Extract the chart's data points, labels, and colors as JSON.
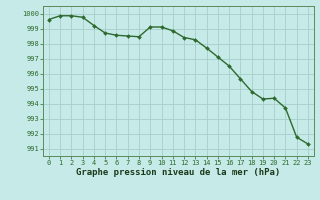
{
  "x": [
    0,
    1,
    2,
    3,
    4,
    5,
    6,
    7,
    8,
    9,
    10,
    11,
    12,
    13,
    14,
    15,
    16,
    17,
    18,
    19,
    20,
    21,
    22,
    23
  ],
  "y": [
    999.6,
    999.85,
    999.85,
    999.75,
    999.2,
    998.7,
    998.55,
    998.5,
    998.45,
    999.1,
    999.1,
    998.85,
    998.4,
    998.25,
    997.7,
    997.1,
    996.5,
    995.65,
    994.8,
    994.3,
    994.35,
    993.7,
    991.75,
    991.3
  ],
  "line_color": "#2d6a2d",
  "marker": "D",
  "marker_size": 2.0,
  "linewidth": 1.0,
  "background_color": "#c6eae8",
  "grid_color": "#a8ceca",
  "xlabel": "Graphe pression niveau de la mer (hPa)",
  "xlabel_fontsize": 6.5,
  "ylim": [
    990.5,
    1000.5
  ],
  "xlim": [
    -0.5,
    23.5
  ],
  "yticks": [
    991,
    992,
    993,
    994,
    995,
    996,
    997,
    998,
    999,
    1000
  ],
  "xticks": [
    0,
    1,
    2,
    3,
    4,
    5,
    6,
    7,
    8,
    9,
    10,
    11,
    12,
    13,
    14,
    15,
    16,
    17,
    18,
    19,
    20,
    21,
    22,
    23
  ],
  "tick_fontsize": 5.0,
  "xlabel_fontweight": "bold"
}
